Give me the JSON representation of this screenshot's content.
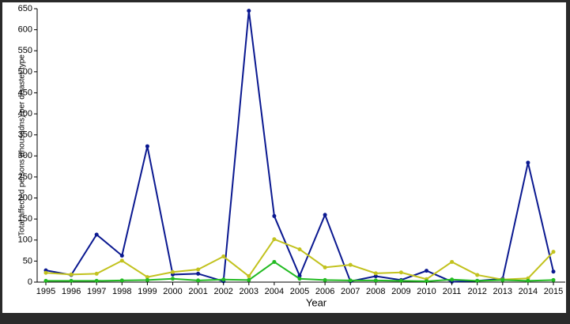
{
  "chart_data": {
    "type": "line",
    "x_label": "Year",
    "y_label": "Total affected persons (thousadns) per  disaster type",
    "categories": [
      "1995",
      "1996",
      "1997",
      "1998",
      "1999",
      "2000",
      "2001",
      "2002",
      "2003",
      "2004",
      "2005",
      "2006",
      "2007",
      "2008",
      "2009",
      "2010",
      "2011",
      "2012",
      "2013",
      "2014",
      "2015"
    ],
    "series": [
      {
        "color": "#0a1890",
        "values": [
          28,
          17,
          113,
          63,
          323,
          18,
          20,
          2,
          645,
          157,
          15,
          160,
          2,
          14,
          5,
          27,
          1,
          3,
          8,
          284,
          25
        ]
      },
      {
        "color": "#c2c21e",
        "values": [
          22,
          18,
          20,
          51,
          12,
          24,
          30,
          61,
          14,
          102,
          78,
          35,
          41,
          21,
          23,
          7,
          48,
          17,
          6,
          9,
          72
        ]
      },
      {
        "color": "#22bb22",
        "values": [
          3,
          3,
          3,
          4,
          5,
          8,
          4,
          6,
          5,
          48,
          8,
          5,
          4,
          4,
          3,
          2,
          6,
          3,
          5,
          3,
          5
        ]
      }
    ],
    "ylim": [
      0,
      650
    ],
    "yticks": [
      0,
      50,
      100,
      150,
      200,
      250,
      300,
      350,
      400,
      450,
      500,
      550,
      600,
      650
    ],
    "grid": false
  }
}
